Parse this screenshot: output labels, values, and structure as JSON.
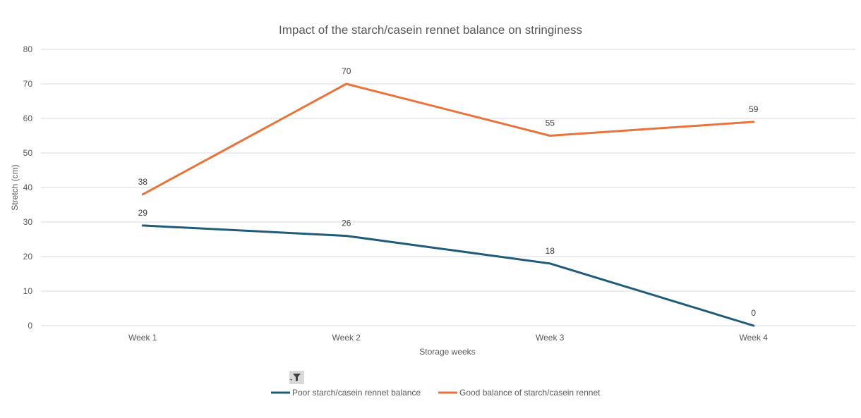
{
  "chart_data": {
    "type": "line",
    "title": "Impact of the starch/casein rennet balance on stringiness",
    "xlabel": "Storage weeks",
    "ylabel": "Stretch (cm)",
    "categories": [
      "Week 1",
      "Week 2",
      "Week 3",
      "Week 4"
    ],
    "ylim": [
      0,
      80
    ],
    "yticks": [
      "0",
      "10",
      "20",
      "30",
      "40",
      "50",
      "60",
      "70",
      "80"
    ],
    "grid": true,
    "legend_position": "bottom",
    "series": [
      {
        "name": "Poor starch/casein rennet balance",
        "color": "#1f5c7a",
        "values": [
          29,
          26,
          18,
          0
        ]
      },
      {
        "name": "Good balance of starch/casein rennet",
        "color": "#e8743b",
        "values": [
          38,
          70,
          55,
          59
        ]
      }
    ]
  },
  "controls": {
    "filter_icon": "filter-funnel-icon"
  }
}
